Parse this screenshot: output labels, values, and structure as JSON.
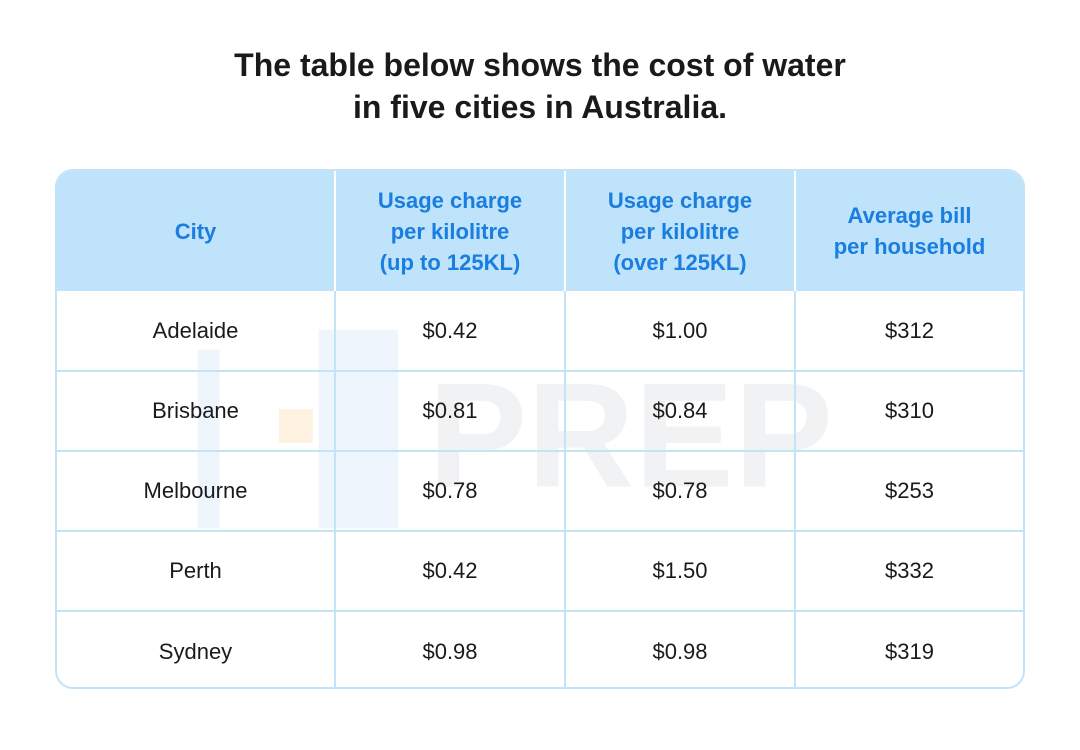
{
  "title": {
    "line1": "The table below shows the cost of water",
    "line2": "in five cities in Australia."
  },
  "watermark": {
    "text": "PREP"
  },
  "colors": {
    "header_bg": "#bfe3fb",
    "header_text": "#1a7de0",
    "border": "#c3e4f7",
    "body_text": "#1a1a1a"
  },
  "chart_data": {
    "type": "table",
    "columns": [
      "City",
      "Usage charge per kilolitre (up to 125KL)",
      "Usage charge per kilolitre (over 125KL)",
      "Average bill per household"
    ],
    "header_lines": [
      [
        "City"
      ],
      [
        "Usage charge",
        "per kilolitre",
        "(up to 125KL)"
      ],
      [
        "Usage charge",
        "per kilolitre",
        "(over 125KL)"
      ],
      [
        "Average bill",
        "per household"
      ]
    ],
    "rows": [
      [
        "Adelaide",
        "$0.42",
        "$1.00",
        "$312"
      ],
      [
        "Brisbane",
        "$0.81",
        "$0.84",
        "$310"
      ],
      [
        "Melbourne",
        "$0.78",
        "$0.78",
        "$253"
      ],
      [
        "Perth",
        "$0.42",
        "$1.50",
        "$332"
      ],
      [
        "Sydney",
        "$0.98",
        "$0.98",
        "$319"
      ]
    ]
  }
}
